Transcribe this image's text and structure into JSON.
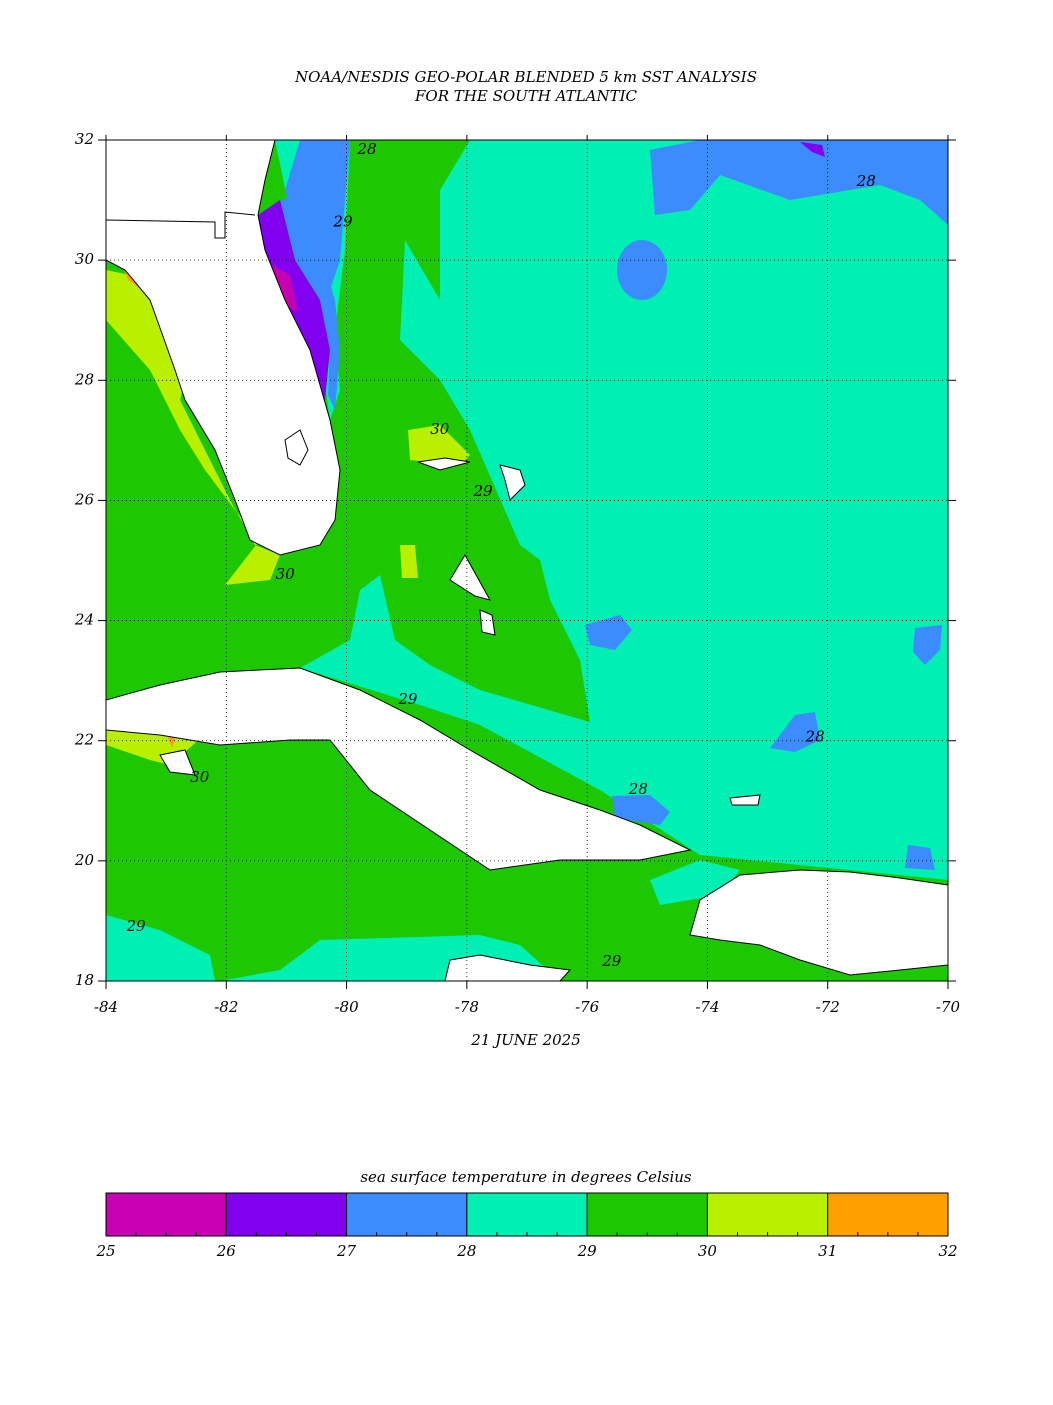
{
  "map": {
    "title": [
      "NOAA/NESDIS GEO-POLAR BLENDED 5 km SST ANALYSIS",
      "FOR THE SOUTH ATLANTIC"
    ],
    "date": "21 JUNE 2025",
    "xlim": [
      -84,
      -70
    ],
    "ylim": [
      18,
      32
    ],
    "xticks": [
      -84,
      -82,
      -80,
      -78,
      -76,
      -74,
      -72,
      -70
    ],
    "yticks": [
      18,
      20,
      22,
      24,
      26,
      28,
      30,
      32
    ],
    "grid": true,
    "contour_labels": [
      {
        "value": 28,
        "lon": -79.66,
        "lat": 31.83
      },
      {
        "value": 28,
        "lon": -71.36,
        "lat": 31.3
      },
      {
        "value": 29,
        "lon": -80.06,
        "lat": 30.63
      },
      {
        "value": 30,
        "lon": -78.45,
        "lat": 27.17
      },
      {
        "value": 29,
        "lon": -77.73,
        "lat": 26.14
      },
      {
        "value": 30,
        "lon": -81.02,
        "lat": 24.76
      },
      {
        "value": 29,
        "lon": -78.98,
        "lat": 22.68
      },
      {
        "value": 30,
        "lon": -82.44,
        "lat": 21.38
      },
      {
        "value": 28,
        "lon": -75.15,
        "lat": 21.18
      },
      {
        "value": 28,
        "lon": -72.21,
        "lat": 22.05
      },
      {
        "value": 29,
        "lon": -83.5,
        "lat": 18.9
      },
      {
        "value": 29,
        "lon": -75.59,
        "lat": 18.32
      }
    ],
    "colorbar": {
      "title": "sea surface temperature in degrees Celsius",
      "bounds": [
        25,
        26,
        27,
        28,
        29,
        30,
        31,
        32
      ],
      "colors": [
        "#c800b4",
        "#8200f0",
        "#3c8cff",
        "#00f0b4",
        "#1ec800",
        "#b9f000",
        "#ffa000"
      ]
    }
  }
}
